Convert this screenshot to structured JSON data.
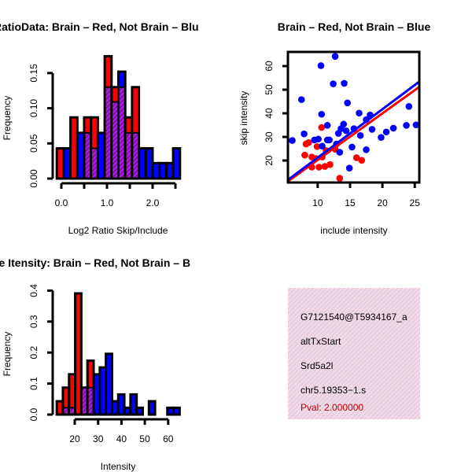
{
  "colors": {
    "red": "#ff0000",
    "blue": "#0000ff",
    "purple": "#a020f0",
    "pval": "#c00000",
    "panel_bg": "#f7d6f0"
  },
  "chart_data": [
    {
      "type": "bar",
      "title": "RatioData: Brain – Red, Not Brain – Blu",
      "xlabel": "Log2 Ratio Skip/Include",
      "ylabel": "Frequency",
      "xticks": [
        {
          "v": 0.0,
          "label": "0.0"
        },
        {
          "v": 0.5,
          "label": ""
        },
        {
          "v": 1.0,
          "label": "1.0"
        },
        {
          "v": 1.5,
          "label": ""
        },
        {
          "v": 2.0,
          "label": "2.0"
        },
        {
          "v": 2.5,
          "label": ""
        }
      ],
      "yticks": [
        {
          "v": 0.0,
          "label": "0.00"
        },
        {
          "v": 0.05,
          "label": "0.05"
        },
        {
          "v": 0.1,
          "label": "0.10"
        },
        {
          "v": 0.15,
          "label": "0.15"
        }
      ],
      "bin_start": -0.1,
      "bin_width": 0.15,
      "series": [
        {
          "name": "Brain",
          "color": "red",
          "values": [
            0.043,
            0,
            0.087,
            0,
            0.087,
            0.087,
            0,
            0.174,
            0.13,
            0.13,
            0.087,
            0.13,
            0,
            0,
            0,
            0,
            0,
            0
          ]
        },
        {
          "name": "Not Brain",
          "color": "blue",
          "values": [
            0,
            0.043,
            0,
            0.065,
            0.065,
            0.043,
            0.065,
            0.13,
            0.109,
            0.152,
            0.065,
            0.065,
            0.043,
            0.043,
            0.022,
            0.022,
            0.022,
            0.043
          ]
        }
      ]
    },
    {
      "type": "scatter",
      "title": "Brain – Red, Not Brain – Blue",
      "xlabel": "include intensity",
      "ylabel": "skip intensity",
      "xlim": [
        5.4,
        25.7
      ],
      "ylim": [
        10.7,
        66
      ],
      "xticks": [
        {
          "v": 10,
          "label": "10"
        },
        {
          "v": 15,
          "label": "15"
        },
        {
          "v": 20,
          "label": "20"
        },
        {
          "v": 25,
          "label": "25"
        }
      ],
      "yticks": [
        {
          "v": 20,
          "label": "20"
        },
        {
          "v": 30,
          "label": "30"
        },
        {
          "v": 40,
          "label": "40"
        },
        {
          "v": 50,
          "label": "50"
        },
        {
          "v": 60,
          "label": "60"
        }
      ],
      "series": [
        {
          "name": "Brain",
          "color": "red",
          "fit": {
            "slope": 1.97,
            "intercept": 0.56
          },
          "points": [
            [
              10.6,
              34.0
            ],
            [
              8.2,
              27.0
            ],
            [
              8.6,
              27.6
            ],
            [
              8.0,
              22.3
            ],
            [
              9.1,
              21.5
            ],
            [
              9.1,
              17.2
            ],
            [
              10.2,
              17.2
            ],
            [
              11.1,
              17.5
            ],
            [
              11.9,
              18.3
            ],
            [
              13.4,
              12.5
            ],
            [
              16.0,
              21.2
            ],
            [
              16.8,
              20.1
            ],
            [
              9.9,
              25.9
            ],
            [
              10.7,
              21.5
            ],
            [
              12.7,
              24.8
            ],
            [
              9.7,
              20.9
            ],
            [
              11.3,
              24.2
            ]
          ]
        },
        {
          "name": "Not Brain",
          "color": "blue",
          "fit": {
            "slope": 2.05,
            "intercept": 0.74
          },
          "points": [
            [
              6.07,
              28.5
            ],
            [
              7.5,
              45.8
            ],
            [
              7.9,
              31.3
            ],
            [
              10.5,
              60.2
            ],
            [
              10.6,
              39.6
            ],
            [
              12.7,
              64.1
            ],
            [
              11.5,
              34.9
            ],
            [
              11.5,
              28.7
            ],
            [
              12.4,
              52.5
            ],
            [
              14.1,
              52.7
            ],
            [
              14.6,
              44.4
            ],
            [
              16.4,
              40.1
            ],
            [
              16.6,
              30.6
            ],
            [
              17.5,
              37.3
            ],
            [
              18.1,
              39.3
            ],
            [
              18.4,
              33.2
            ],
            [
              15.3,
              25.7
            ],
            [
              14.9,
              16.8
            ],
            [
              17.5,
              24.6
            ],
            [
              13.4,
              23.5
            ],
            [
              19.8,
              29.8
            ],
            [
              20.6,
              32.1
            ],
            [
              21.7,
              33.7
            ],
            [
              24.1,
              42.9
            ],
            [
              23.7,
              34.9
            ],
            [
              25.2,
              35.1
            ],
            [
              14.0,
              35.4
            ],
            [
              13.2,
              31.5
            ],
            [
              13.6,
              33.5
            ],
            [
              14.4,
              32.6
            ],
            [
              15.6,
              33.5
            ],
            [
              9.5,
              28.7
            ],
            [
              10.1,
              29.1
            ],
            [
              10.7,
              26.1
            ],
            [
              11.8,
              28.7
            ],
            [
              12.9,
              27.0
            ]
          ]
        }
      ]
    },
    {
      "type": "bar",
      "title": "ne Itensity: Brain – Red, Not Brain – B",
      "xlabel": "Intensity",
      "ylabel": "Frequency",
      "xticks": [
        {
          "v": 20,
          "label": "20"
        },
        {
          "v": 30,
          "label": "30"
        },
        {
          "v": 40,
          "label": "40"
        },
        {
          "v": 50,
          "label": "50"
        },
        {
          "v": 60,
          "label": "60"
        }
      ],
      "yticks": [
        {
          "v": 0.0,
          "label": "0.0"
        },
        {
          "v": 0.1,
          "label": "0.1"
        },
        {
          "v": 0.2,
          "label": "0.2"
        },
        {
          "v": 0.3,
          "label": "0.3"
        },
        {
          "v": 0.4,
          "label": "0.4"
        }
      ],
      "bin_start": 12.3,
      "bin_width": 2.63,
      "series": [
        {
          "name": "Brain",
          "color": "red",
          "values": [
            0.043,
            0.087,
            0.13,
            0.391,
            0.087,
            0.174,
            0,
            0,
            0,
            0,
            0,
            0,
            0,
            0,
            0,
            0,
            0,
            0,
            0,
            0
          ]
        },
        {
          "name": "Not Brain",
          "color": "blue",
          "values": [
            0,
            0.022,
            0.022,
            0,
            0.087,
            0.087,
            0.13,
            0.152,
            0.196,
            0.043,
            0.065,
            0.022,
            0.065,
            0.022,
            0,
            0.043,
            0,
            0,
            0.022,
            0.022
          ]
        }
      ]
    }
  ],
  "info_panel": {
    "lines": [
      "G7121540@T5934167_a",
      "altTxStart",
      "Srd5a2l",
      "chr5.19353−1.s"
    ],
    "pval": "Pval: 2.000000"
  }
}
